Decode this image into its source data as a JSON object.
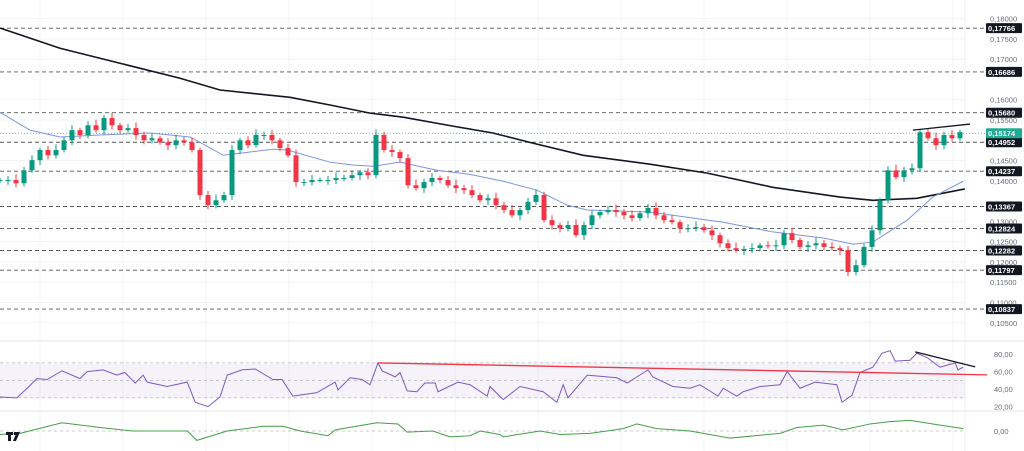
{
  "chart_data": {
    "type": "candlestick",
    "title": "",
    "price_axis": {
      "ylim": [
        0.1005,
        0.1846
      ],
      "ticks": [
        "0,18000",
        "0,17500",
        "0,17000",
        "0,16000",
        "0,15500",
        "0,14500",
        "0,14000",
        "0,13000",
        "0,12500",
        "0,12000",
        "0,11500",
        "0,11000",
        "0,10500"
      ],
      "tick_values": [
        0.18,
        0.175,
        0.17,
        0.16,
        0.155,
        0.145,
        0.14,
        0.13,
        0.125,
        0.12,
        0.115,
        0.11,
        0.105
      ]
    },
    "closes": [
      0.1402,
      0.1402,
      0.1394,
      0.1426,
      0.1451,
      0.1476,
      0.1463,
      0.1476,
      0.15,
      0.1525,
      0.1513,
      0.1537,
      0.1525,
      0.1555,
      0.1537,
      0.1525,
      0.153,
      0.1513,
      0.15,
      0.1505,
      0.1495,
      0.1488,
      0.15,
      0.1495,
      0.1476,
      0.1365,
      0.134,
      0.1352,
      0.1365,
      0.1476,
      0.15,
      0.1488,
      0.1513,
      0.1513,
      0.15,
      0.1481,
      0.1463,
      0.1397,
      0.1397,
      0.1402,
      0.1402,
      0.1402,
      0.1407,
      0.1407,
      0.1414,
      0.1421,
      0.1414,
      0.1513,
      0.1476,
      0.1471,
      0.1456,
      0.1389,
      0.1382,
      0.1397,
      0.1407,
      0.1402,
      0.1389,
      0.1382,
      0.1377,
      0.1365,
      0.1352,
      0.1357,
      0.134,
      0.1328,
      0.1315,
      0.1328,
      0.1348,
      0.1365,
      0.1303,
      0.1291,
      0.1283,
      0.1291,
      0.1266,
      0.1291,
      0.1315,
      0.1323,
      0.1328,
      0.1323,
      0.1315,
      0.1308,
      0.132,
      0.1333,
      0.1315,
      0.1303,
      0.1298,
      0.1283,
      0.1283,
      0.1286,
      0.1278,
      0.1266,
      0.1246,
      0.1234,
      0.1229,
      0.1232,
      0.1234,
      0.1241,
      0.1239,
      0.1241,
      0.1271,
      0.1254,
      0.1237,
      0.1241,
      0.1246,
      0.1237,
      0.1234,
      0.1229,
      0.1175,
      0.1192,
      0.1237,
      0.1278,
      0.1352,
      0.1426,
      0.1409,
      0.1426,
      0.1431,
      0.152,
      0.1505,
      0.1488,
      0.1513,
      0.1505,
      0.152
    ],
    "first_open": 0.14,
    "levels": [
      {
        "value": 0.17766,
        "label": "0,17766"
      },
      {
        "value": 0.16686,
        "label": "0,16686"
      },
      {
        "value": 0.1568,
        "label": "0,15680"
      },
      {
        "value": 0.14952,
        "label": "0,14952"
      },
      {
        "value": 0.14237,
        "label": "0,14237"
      },
      {
        "value": 0.13367,
        "label": "0,13367"
      },
      {
        "value": 0.12824,
        "label": "0,12824"
      },
      {
        "value": 0.12282,
        "label": "0,12282"
      },
      {
        "value": 0.11797,
        "label": "0,11797"
      },
      {
        "value": 0.10837,
        "label": "0,10837"
      }
    ],
    "current_price": {
      "value": 0.15174,
      "label": "0,15174"
    },
    "ma_fast": {
      "color": "#7b95e0",
      "points": [
        [
          0,
          0.1569
        ],
        [
          3.75,
          0.1525
        ],
        [
          7.5,
          0.1508
        ],
        [
          12.5,
          0.1513
        ],
        [
          18.75,
          0.1518
        ],
        [
          23.75,
          0.1508
        ],
        [
          25,
          0.1495
        ],
        [
          27.9,
          0.1463
        ],
        [
          30,
          0.1468
        ],
        [
          34.1,
          0.1478
        ],
        [
          35.9,
          0.1476
        ],
        [
          41.25,
          0.1446
        ],
        [
          44.1,
          0.1439
        ],
        [
          46.6,
          0.1436
        ],
        [
          50,
          0.1446
        ],
        [
          54.6,
          0.1426
        ],
        [
          58.75,
          0.1416
        ],
        [
          62.9,
          0.1399
        ],
        [
          67.1,
          0.1377
        ],
        [
          70.9,
          0.134
        ],
        [
          73.4,
          0.1328
        ],
        [
          81.25,
          0.1323
        ],
        [
          84.1,
          0.1315
        ],
        [
          90.4,
          0.1298
        ],
        [
          96.6,
          0.1274
        ],
        [
          102.9,
          0.1259
        ],
        [
          106.6,
          0.1244
        ],
        [
          109.1,
          0.1249
        ],
        [
          113.4,
          0.1303
        ],
        [
          116.6,
          0.136
        ],
        [
          120.4,
          0.1399
        ]
      ]
    },
    "ma_slow": {
      "color": "#131722",
      "points": [
        [
          0,
          0.1777
        ],
        [
          7.5,
          0.1727
        ],
        [
          15,
          0.169
        ],
        [
          22.5,
          0.1653
        ],
        [
          27.5,
          0.1624
        ],
        [
          36.25,
          0.1606
        ],
        [
          41.25,
          0.1587
        ],
        [
          46.25,
          0.1567
        ],
        [
          50.4,
          0.1557
        ],
        [
          56.6,
          0.1535
        ],
        [
          61.6,
          0.1518
        ],
        [
          66.6,
          0.1493
        ],
        [
          72.9,
          0.1463
        ],
        [
          81.25,
          0.1441
        ],
        [
          88.4,
          0.1419
        ],
        [
          96.6,
          0.1384
        ],
        [
          105,
          0.136
        ],
        [
          109.1,
          0.1352
        ],
        [
          114.6,
          0.1357
        ],
        [
          120.6,
          0.138
        ]
      ]
    },
    "price_trendline": [
      [
        114.1,
        0.1525
      ],
      [
        121.25,
        0.154
      ]
    ],
    "rsi": {
      "ylim": [
        15,
        95
      ],
      "ticks": [
        "80,00",
        "60,00",
        "40,00",
        "20,00"
      ],
      "tick_values": [
        80,
        60,
        40,
        20
      ],
      "band": [
        30,
        70
      ],
      "mid": 50,
      "values": [
        [
          0,
          31
        ],
        [
          2.1,
          30
        ],
        [
          3.4,
          41
        ],
        [
          4.6,
          52
        ],
        [
          5.9,
          51
        ],
        [
          7.75,
          61
        ],
        [
          10,
          52
        ],
        [
          10.9,
          60
        ],
        [
          12.9,
          62
        ],
        [
          14.6,
          56
        ],
        [
          15.6,
          59
        ],
        [
          16.9,
          47
        ],
        [
          17.9,
          56
        ],
        [
          18.4,
          48
        ],
        [
          20.9,
          43
        ],
        [
          23.4,
          48
        ],
        [
          24.4,
          25
        ],
        [
          26,
          20
        ],
        [
          27.5,
          31
        ],
        [
          28.4,
          56
        ],
        [
          30.25,
          62
        ],
        [
          31.9,
          63
        ],
        [
          34.1,
          51
        ],
        [
          35.25,
          51
        ],
        [
          36.6,
          32
        ],
        [
          39.6,
          36
        ],
        [
          41.9,
          48
        ],
        [
          42.25,
          39
        ],
        [
          43.75,
          53
        ],
        [
          45.25,
          51
        ],
        [
          46.25,
          45
        ],
        [
          47.25,
          70
        ],
        [
          47.75,
          61
        ],
        [
          49.4,
          54
        ],
        [
          50,
          59
        ],
        [
          50.9,
          38
        ],
        [
          52.1,
          37
        ],
        [
          53.1,
          47
        ],
        [
          54.4,
          47
        ],
        [
          54.75,
          37
        ],
        [
          57.25,
          48
        ],
        [
          58.75,
          45
        ],
        [
          60.9,
          32
        ],
        [
          61.25,
          43
        ],
        [
          62.9,
          28
        ],
        [
          65,
          43
        ],
        [
          67.9,
          37
        ],
        [
          69.6,
          25
        ],
        [
          70.4,
          45
        ],
        [
          71,
          30
        ],
        [
          73.4,
          56
        ],
        [
          77.1,
          53
        ],
        [
          78.4,
          47
        ],
        [
          81,
          62
        ],
        [
          81.6,
          54
        ],
        [
          84.1,
          43
        ],
        [
          86.25,
          41
        ],
        [
          87.5,
          45
        ],
        [
          89.75,
          32
        ],
        [
          90.4,
          41
        ],
        [
          92.1,
          32
        ],
        [
          92.9,
          37
        ],
        [
          95,
          43
        ],
        [
          97.5,
          45
        ],
        [
          98.4,
          60
        ],
        [
          100,
          41
        ],
        [
          101.9,
          48
        ],
        [
          104.6,
          45
        ],
        [
          105.25,
          25
        ],
        [
          106.5,
          33
        ],
        [
          107.5,
          59
        ],
        [
          109.1,
          65
        ],
        [
          110.25,
          81
        ],
        [
          111.25,
          84
        ],
        [
          111.9,
          72
        ],
        [
          113.75,
          73
        ],
        [
          114.6,
          81
        ],
        [
          115.9,
          76
        ],
        [
          117.5,
          65
        ],
        [
          119.4,
          70
        ],
        [
          119.75,
          62
        ],
        [
          120.4,
          65
        ]
      ],
      "trendline_red": [
        [
          47.25,
          70
        ],
        [
          123.4,
          56.3
        ]
      ],
      "trendline_black": [
        [
          114.4,
          82.6
        ],
        [
          121.9,
          65.4
        ]
      ]
    },
    "oscillator": {
      "ylim": [
        -1.7,
        1.7
      ],
      "ticks": [
        "0,00"
      ],
      "tick_values": [
        0
      ],
      "values": [
        [
          0,
          -0.3
        ],
        [
          2.5,
          -0.2
        ],
        [
          7.75,
          0.7
        ],
        [
          12.5,
          0.3
        ],
        [
          16.6,
          0
        ],
        [
          23.4,
          0
        ],
        [
          24.6,
          -0.8
        ],
        [
          28.4,
          0
        ],
        [
          32.9,
          0.4
        ],
        [
          35.4,
          0.4
        ],
        [
          37.5,
          0
        ],
        [
          41,
          -0.4
        ],
        [
          41.9,
          0.1
        ],
        [
          47.1,
          0.7
        ],
        [
          49.75,
          0.6
        ],
        [
          50.9,
          -0.1
        ],
        [
          54.1,
          0
        ],
        [
          56.25,
          -0.5
        ],
        [
          58.75,
          -0.4
        ],
        [
          60,
          0
        ],
        [
          62.5,
          -0.3
        ],
        [
          62.9,
          -0.5
        ],
        [
          67.5,
          0
        ],
        [
          70,
          -0.3
        ],
        [
          73.75,
          -0.2
        ],
        [
          77.9,
          0.2
        ],
        [
          79.6,
          0.6
        ],
        [
          82.1,
          0.2
        ],
        [
          86.25,
          0
        ],
        [
          91.25,
          -0.6
        ],
        [
          97.5,
          -0.2
        ],
        [
          99.6,
          0.3
        ],
        [
          102.9,
          0.5
        ],
        [
          105.4,
          0.1
        ],
        [
          108.75,
          0.6
        ],
        [
          111.25,
          0.8
        ],
        [
          113.75,
          0.9
        ],
        [
          117.5,
          0.5
        ],
        [
          120.4,
          0.2
        ]
      ]
    },
    "colors": {
      "up": "#089981",
      "down": "#f23645",
      "rsi": "#7e57c2",
      "osc": "#43a047",
      "current": "#22ab94"
    }
  }
}
